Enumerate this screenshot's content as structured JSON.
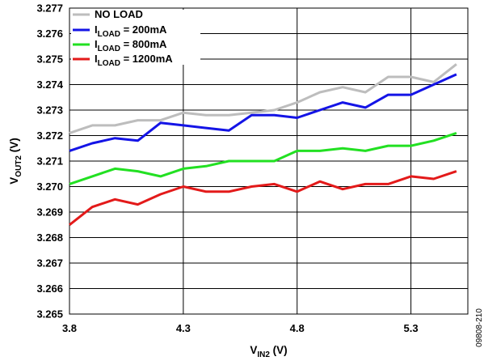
{
  "chart_data": {
    "type": "line",
    "xlabel": {
      "main": "V",
      "sub": "IN2",
      "unit": " (V)"
    },
    "ylabel": {
      "main": "V",
      "sub": "OUT2",
      "unit": " (V)"
    },
    "xlim": [
      3.8,
      5.55
    ],
    "ylim": [
      3.265,
      3.277
    ],
    "xticks": [
      "3.8",
      "4.3",
      "4.8",
      "5.3"
    ],
    "yticks": [
      "3.265",
      "3.266",
      "3.267",
      "3.268",
      "3.269",
      "3.270",
      "3.271",
      "3.272",
      "3.273",
      "3.274",
      "3.275",
      "3.276",
      "3.277"
    ],
    "grid": true,
    "legend_position": "top-left",
    "x": [
      3.8,
      3.9,
      4.0,
      4.1,
      4.2,
      4.3,
      4.4,
      4.5,
      4.6,
      4.7,
      4.8,
      4.9,
      5.0,
      5.1,
      5.2,
      5.3,
      5.4,
      5.5
    ],
    "series": [
      {
        "name": "NO LOAD",
        "label_main": "NO LOAD",
        "label_sub": "",
        "label_rest": "",
        "color": "#bdbdbd",
        "values": [
          3.2721,
          3.2724,
          3.2724,
          3.2726,
          3.2726,
          3.2729,
          3.2728,
          3.2728,
          3.2729,
          3.273,
          3.2733,
          3.2737,
          3.2739,
          3.2737,
          3.2743,
          3.2743,
          3.2741,
          3.2748
        ]
      },
      {
        "name": "ILOAD = 200mA",
        "label_main": "I",
        "label_sub": "LOAD",
        "label_rest": " = 200mA",
        "color": "#1414e6",
        "values": [
          3.2714,
          3.2717,
          3.2719,
          3.2718,
          3.2725,
          3.2724,
          3.2723,
          3.2722,
          3.2728,
          3.2728,
          3.2727,
          3.273,
          3.2733,
          3.2731,
          3.2736,
          3.2736,
          3.274,
          3.2744
        ]
      },
      {
        "name": "ILOAD = 800mA",
        "label_main": "I",
        "label_sub": "LOAD",
        "label_rest": " = 800mA",
        "color": "#22e022",
        "values": [
          3.2701,
          3.2704,
          3.2707,
          3.2706,
          3.2704,
          3.2707,
          3.2708,
          3.271,
          3.271,
          3.271,
          3.2714,
          3.2714,
          3.2715,
          3.2714,
          3.2716,
          3.2716,
          3.2718,
          3.2721
        ]
      },
      {
        "name": "ILOAD = 1200mA",
        "label_main": "I",
        "label_sub": "LOAD",
        "label_rest": " = 1200mA",
        "color": "#e31a1a",
        "values": [
          3.2685,
          3.2692,
          3.2695,
          3.2693,
          3.2697,
          3.27,
          3.2698,
          3.2698,
          3.27,
          3.2701,
          3.2698,
          3.2702,
          3.2699,
          3.2701,
          3.2701,
          3.2704,
          3.2703,
          3.2706
        ]
      }
    ]
  },
  "figure_id": "09808-210"
}
